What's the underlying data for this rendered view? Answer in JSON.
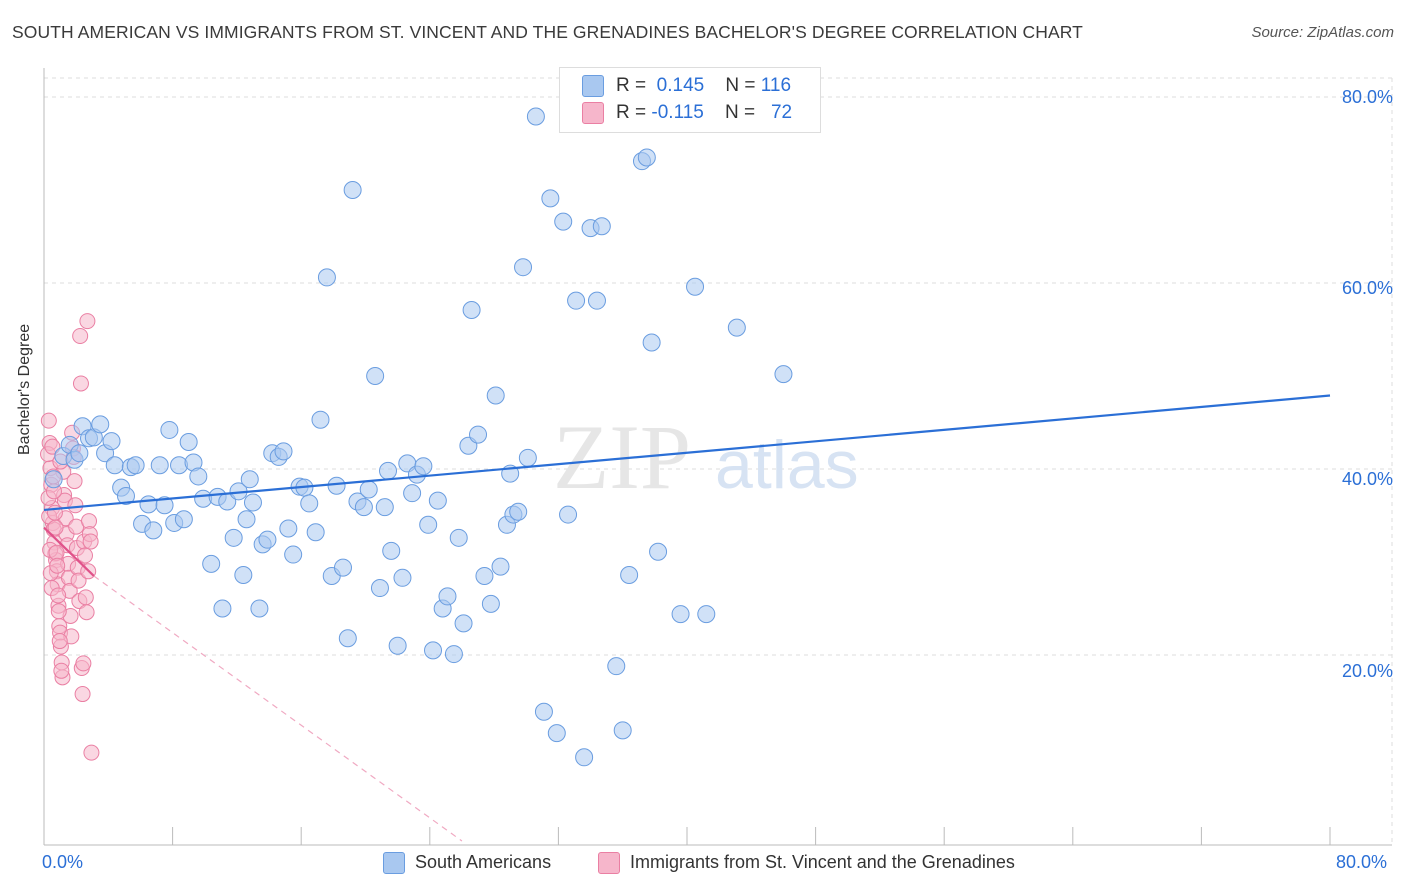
{
  "header": {
    "title": "SOUTH AMERICAN VS IMMIGRANTS FROM ST. VINCENT AND THE GRENADINES BACHELOR'S DEGREE CORRELATION CHART",
    "source": "Source: ZipAtlas.com"
  },
  "watermark": {
    "zip": "ZIP",
    "atlas": "atlas"
  },
  "legend": {
    "r_label": "R =",
    "n_label": "N =",
    "series1": {
      "r": "0.145",
      "n": "116"
    },
    "series2": {
      "r": "-0.115",
      "n": "72"
    }
  },
  "colors": {
    "blue_fill": "#a9c8f0",
    "blue_stroke": "#6a9de0",
    "blue_line": "#2b6fd6",
    "pink_fill": "#f6b6cb",
    "pink_stroke": "#ea7fa3",
    "pink_line": "#e0528a",
    "tick_text": "#2b6fd6",
    "grid": "#dddddd"
  },
  "chart_data": {
    "type": "scatter",
    "title": "SOUTH AMERICAN VS IMMIGRANTS FROM ST. VINCENT AND THE GRENADINES BACHELOR'S DEGREE CORRELATION CHART",
    "xlabel": "",
    "ylabel": "Bachelor's Degree",
    "xlim": [
      0,
      80
    ],
    "ylim": [
      0,
      80
    ],
    "x_tick_labels": [
      "0.0%",
      "80.0%"
    ],
    "y_tick_labels": [
      {
        "value": 20,
        "label": "20.0%"
      },
      {
        "value": 40,
        "label": "40.0%"
      },
      {
        "value": 60,
        "label": "60.0%"
      },
      {
        "value": 80,
        "label": "80.0%"
      }
    ],
    "grid": true,
    "legend_position": "top-center",
    "series": [
      {
        "name": "South Americans",
        "color": "#a9c8f0",
        "trend": {
          "x0": 0,
          "y0": 35.6,
          "x1": 80,
          "y1": 47.9,
          "style": "solid"
        },
        "points": [
          [
            0.6,
            38.9
          ],
          [
            1.2,
            41.4
          ],
          [
            1.6,
            42.6
          ],
          [
            1.9,
            41.0
          ],
          [
            2.2,
            41.7
          ],
          [
            2.4,
            44.6
          ],
          [
            2.8,
            43.3
          ],
          [
            3.1,
            43.4
          ],
          [
            3.5,
            44.8
          ],
          [
            3.8,
            41.7
          ],
          [
            4.2,
            43.0
          ],
          [
            4.4,
            40.4
          ],
          [
            4.8,
            38.0
          ],
          [
            5.1,
            37.1
          ],
          [
            5.4,
            40.2
          ],
          [
            5.7,
            40.4
          ],
          [
            6.1,
            34.1
          ],
          [
            6.5,
            36.2
          ],
          [
            6.8,
            33.4
          ],
          [
            7.2,
            40.4
          ],
          [
            7.5,
            36.1
          ],
          [
            7.8,
            44.2
          ],
          [
            8.1,
            34.2
          ],
          [
            8.4,
            40.4
          ],
          [
            8.7,
            34.6
          ],
          [
            9.0,
            42.9
          ],
          [
            9.3,
            40.7
          ],
          [
            9.6,
            39.2
          ],
          [
            9.9,
            36.8
          ],
          [
            10.4,
            29.8
          ],
          [
            10.8,
            37.0
          ],
          [
            11.1,
            25.0
          ],
          [
            11.4,
            36.5
          ],
          [
            11.8,
            32.6
          ],
          [
            12.1,
            37.6
          ],
          [
            12.4,
            28.6
          ],
          [
            12.6,
            34.6
          ],
          [
            13.0,
            36.4
          ],
          [
            13.4,
            25.0
          ],
          [
            13.6,
            31.9
          ],
          [
            13.9,
            32.4
          ],
          [
            14.2,
            41.7
          ],
          [
            14.6,
            41.3
          ],
          [
            14.9,
            41.9
          ],
          [
            15.2,
            33.6
          ],
          [
            15.5,
            30.8
          ],
          [
            15.9,
            38.1
          ],
          [
            16.2,
            38.0
          ],
          [
            16.5,
            36.3
          ],
          [
            16.9,
            33.2
          ],
          [
            17.2,
            45.3
          ],
          [
            17.6,
            60.6
          ],
          [
            17.9,
            28.5
          ],
          [
            18.2,
            38.2
          ],
          [
            18.6,
            29.4
          ],
          [
            18.9,
            21.8
          ],
          [
            19.2,
            70.0
          ],
          [
            19.5,
            36.5
          ],
          [
            19.9,
            35.9
          ],
          [
            20.2,
            37.8
          ],
          [
            20.6,
            50.0
          ],
          [
            20.9,
            27.2
          ],
          [
            21.2,
            35.9
          ],
          [
            21.6,
            31.2
          ],
          [
            22.0,
            21.0
          ],
          [
            22.3,
            28.3
          ],
          [
            22.6,
            40.6
          ],
          [
            22.9,
            37.4
          ],
          [
            23.2,
            39.4
          ],
          [
            23.6,
            40.3
          ],
          [
            23.9,
            34.0
          ],
          [
            24.2,
            20.5
          ],
          [
            24.5,
            36.6
          ],
          [
            24.8,
            25.0
          ],
          [
            25.1,
            26.3
          ],
          [
            25.5,
            20.1
          ],
          [
            25.8,
            32.6
          ],
          [
            26.1,
            23.4
          ],
          [
            26.4,
            42.5
          ],
          [
            26.6,
            57.1
          ],
          [
            27.0,
            43.7
          ],
          [
            27.4,
            28.5
          ],
          [
            27.8,
            25.5
          ],
          [
            28.1,
            47.9
          ],
          [
            28.4,
            29.5
          ],
          [
            28.8,
            34.0
          ],
          [
            29.2,
            35.1
          ],
          [
            29.5,
            35.4
          ],
          [
            29.8,
            61.7
          ],
          [
            30.1,
            41.2
          ],
          [
            30.6,
            77.9
          ],
          [
            31.1,
            13.9
          ],
          [
            31.5,
            69.1
          ],
          [
            31.9,
            11.6
          ],
          [
            32.3,
            66.6
          ],
          [
            32.6,
            35.1
          ],
          [
            33.1,
            58.1
          ],
          [
            33.6,
            9.0
          ],
          [
            34.0,
            65.9
          ],
          [
            34.4,
            58.1
          ],
          [
            34.7,
            66.1
          ],
          [
            35.6,
            18.8
          ],
          [
            36.0,
            11.9
          ],
          [
            36.4,
            28.6
          ],
          [
            37.2,
            73.1
          ],
          [
            37.5,
            73.5
          ],
          [
            37.8,
            53.6
          ],
          [
            38.2,
            31.1
          ],
          [
            39.6,
            24.4
          ],
          [
            40.5,
            59.6
          ],
          [
            41.2,
            24.4
          ],
          [
            43.1,
            55.2
          ],
          [
            46.0,
            50.2
          ],
          [
            29.0,
            39.5
          ],
          [
            12.8,
            38.9
          ],
          [
            21.4,
            39.8
          ]
        ]
      },
      {
        "name": "Immigrants from St. Vincent and the Grenadines",
        "color": "#f6b6cb",
        "trend": {
          "x0": 0,
          "y0": 33.7,
          "x1": 3.1,
          "y1": 28.5,
          "style": "solid",
          "extended_x1": 26,
          "extended_y1": 0,
          "extended_style": "dashed"
        },
        "points": [
          [
            0.3,
            45.2
          ],
          [
            0.35,
            42.8
          ],
          [
            0.4,
            40.1
          ],
          [
            0.45,
            38.3
          ],
          [
            0.5,
            35.8
          ],
          [
            0.55,
            34.2
          ],
          [
            0.6,
            33.5
          ],
          [
            0.65,
            32.1
          ],
          [
            0.7,
            30.9
          ],
          [
            0.75,
            30.2
          ],
          [
            0.8,
            29.0
          ],
          [
            0.85,
            27.6
          ],
          [
            0.9,
            25.3
          ],
          [
            0.95,
            23.1
          ],
          [
            1.0,
            22.4
          ],
          [
            1.05,
            20.9
          ],
          [
            1.1,
            19.2
          ],
          [
            1.15,
            17.6
          ],
          [
            1.2,
            39.7
          ],
          [
            1.25,
            37.2
          ],
          [
            1.3,
            36.6
          ],
          [
            1.35,
            34.7
          ],
          [
            1.4,
            33.0
          ],
          [
            1.45,
            31.8
          ],
          [
            1.5,
            29.8
          ],
          [
            1.55,
            28.3
          ],
          [
            1.6,
            26.9
          ],
          [
            1.65,
            24.2
          ],
          [
            1.7,
            22.0
          ],
          [
            1.75,
            43.9
          ],
          [
            1.8,
            42.2
          ],
          [
            1.85,
            41.3
          ],
          [
            1.9,
            38.7
          ],
          [
            1.95,
            36.1
          ],
          [
            2.0,
            33.8
          ],
          [
            2.05,
            31.5
          ],
          [
            2.1,
            29.4
          ],
          [
            2.15,
            28.0
          ],
          [
            2.2,
            25.8
          ],
          [
            2.25,
            54.3
          ],
          [
            2.3,
            49.2
          ],
          [
            2.35,
            18.6
          ],
          [
            2.4,
            15.8
          ],
          [
            2.45,
            19.1
          ],
          [
            2.5,
            32.2
          ],
          [
            2.55,
            30.7
          ],
          [
            2.6,
            26.2
          ],
          [
            2.65,
            24.6
          ],
          [
            2.7,
            55.9
          ],
          [
            2.75,
            29.0
          ],
          [
            2.8,
            34.4
          ],
          [
            2.85,
            33.0
          ],
          [
            2.9,
            32.2
          ],
          [
            2.95,
            9.5
          ],
          [
            0.25,
            41.6
          ],
          [
            0.28,
            36.9
          ],
          [
            0.32,
            34.9
          ],
          [
            0.38,
            31.3
          ],
          [
            0.42,
            28.8
          ],
          [
            0.48,
            27.2
          ],
          [
            0.52,
            42.4
          ],
          [
            0.58,
            39.2
          ],
          [
            0.62,
            37.6
          ],
          [
            0.68,
            35.3
          ],
          [
            0.72,
            33.7
          ],
          [
            0.78,
            31.0
          ],
          [
            0.82,
            29.6
          ],
          [
            0.88,
            26.4
          ],
          [
            0.92,
            24.7
          ],
          [
            0.98,
            21.5
          ],
          [
            1.02,
            40.8
          ],
          [
            1.08,
            18.3
          ]
        ]
      }
    ]
  }
}
